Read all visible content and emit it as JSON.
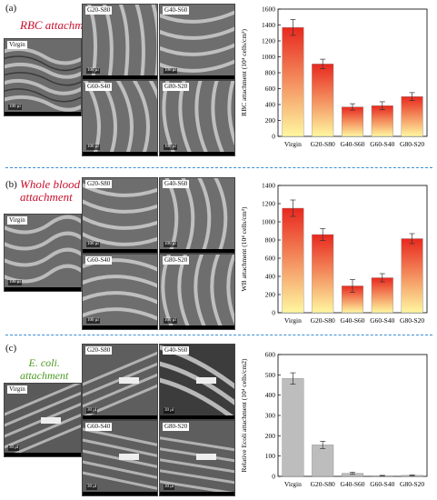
{
  "panels": [
    {
      "letter": "(a)",
      "title_lines": [
        "RBC attachment"
      ],
      "images": {
        "virgin": "Virgin",
        "tiles": [
          "G20-S80",
          "G40-S60",
          "G60-S40",
          "G80-S20"
        ],
        "scale": "100 μl"
      }
    },
    {
      "letter": "(b)",
      "title_lines": [
        "Whole blood",
        "attachment"
      ],
      "images": {
        "virgin": "Virgin",
        "tiles": [
          "G20-S80",
          "G40-S60",
          "G60-S40",
          "G80-S20"
        ],
        "scale": "100 μl"
      }
    },
    {
      "letter": "(c)",
      "title_lines": [
        "E. coli.",
        "attachment"
      ],
      "images": {
        "virgin": "Virgin",
        "tiles": [
          "G20-S80",
          "G40-S60",
          "G60-S40",
          "G80-S20"
        ],
        "scale": "30 μl"
      }
    }
  ],
  "chart_data": [
    {
      "type": "bar",
      "categories": [
        "Virgin",
        "G20-S80",
        "G40-S60",
        "G60-S40",
        "G80-S20"
      ],
      "values": [
        1370,
        910,
        370,
        385,
        500
      ],
      "errors": [
        100,
        60,
        40,
        50,
        50
      ],
      "ylabel": "RBC attachment (10⁴ cells/cm²)",
      "ylim": [
        0,
        1600
      ],
      "yticks": [
        0,
        200,
        400,
        600,
        800,
        1000,
        1200,
        1400,
        1600
      ],
      "fill": "gradient-yellow-red"
    },
    {
      "type": "bar",
      "categories": [
        "Virgin",
        "G20-S80",
        "G40-S60",
        "G60-S40",
        "G80-S20"
      ],
      "values": [
        1150,
        860,
        295,
        385,
        815
      ],
      "errors": [
        90,
        65,
        70,
        45,
        55
      ],
      "ylabel": "WB attachment (10⁴ cells/cm²)",
      "ylim": [
        0,
        1400
      ],
      "yticks": [
        0,
        200,
        400,
        600,
        800,
        1000,
        1200,
        1400
      ],
      "fill": "gradient-yellow-red"
    },
    {
      "type": "bar",
      "categories": [
        "Virgin",
        "G20-S80",
        "G40-S60",
        "G60-S40",
        "G80-S20"
      ],
      "values": [
        482,
        155,
        15,
        3,
        5
      ],
      "errors": [
        28,
        18,
        5,
        2,
        2
      ],
      "ylabel": "Relative Ecoli attachment (10⁴ cells/cm2)",
      "ylim": [
        0,
        600
      ],
      "yticks": [
        0,
        100,
        200,
        300,
        400,
        500,
        600
      ],
      "fill": "#bdbdbd"
    }
  ],
  "colors": {
    "title_red": "#c8102e",
    "title_green": "#4a9a1f",
    "separator": "#3b8ed6",
    "bar_top": "#e8281e",
    "bar_bottom": "#fff7a0",
    "bar_grey": "#bdbdbd"
  }
}
